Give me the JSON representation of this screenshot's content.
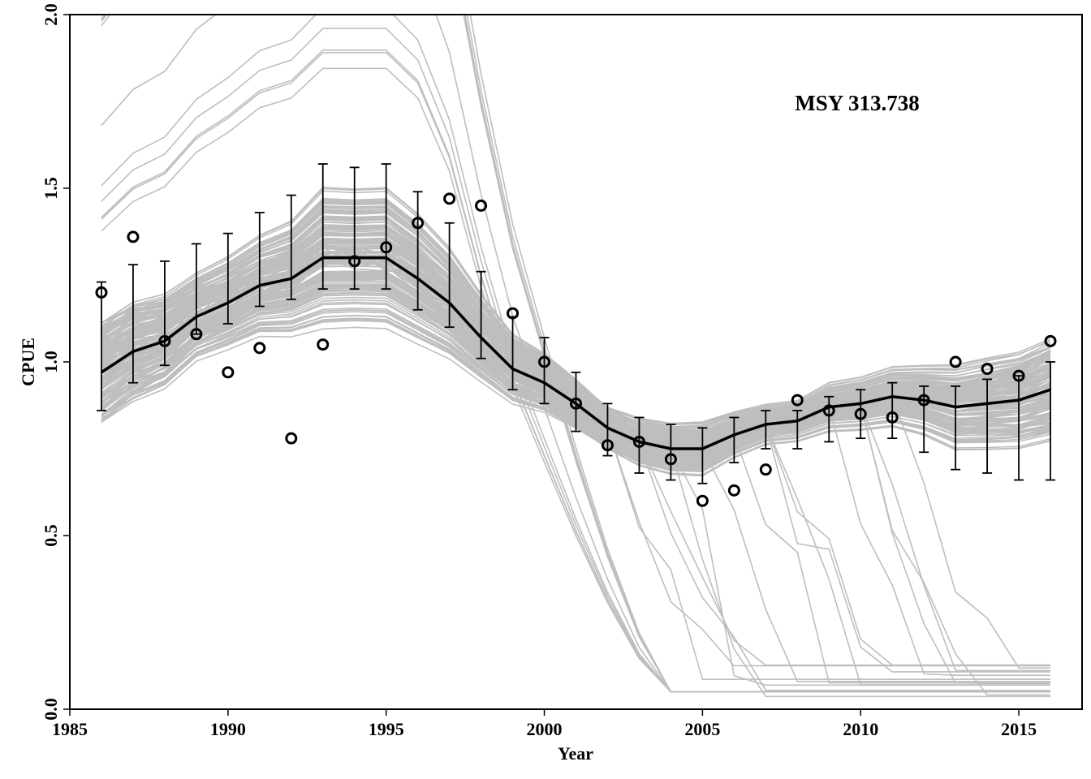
{
  "chart_data": {
    "type": "line",
    "title": "",
    "xlabel": "Year",
    "ylabel": "CPUE",
    "xlim": [
      1985,
      2017
    ],
    "ylim": [
      0,
      2
    ],
    "x_ticks": [
      1985,
      1990,
      1995,
      2000,
      2005,
      2010,
      2015
    ],
    "x_tick_labels": [
      "1985",
      "1990",
      "1995",
      "2000",
      "2005",
      "2010",
      "2015"
    ],
    "y_ticks": [
      0,
      0.5,
      1,
      1.5,
      2
    ],
    "y_tick_labels": [
      "0.0",
      "0.5",
      "1.0",
      "1.5",
      "2.0"
    ],
    "grid": false,
    "annotation": "MSY 313.738",
    "colors": {
      "trajectories": "#bebebe",
      "median": "#000000",
      "observed": "#000000"
    },
    "x": [
      1986,
      1987,
      1988,
      1989,
      1990,
      1991,
      1992,
      1993,
      1994,
      1995,
      1996,
      1997,
      1998,
      1999,
      2000,
      2001,
      2002,
      2003,
      2004,
      2005,
      2006,
      2007,
      2008,
      2009,
      2010,
      2011,
      2012,
      2013,
      2014,
      2015,
      2016
    ],
    "series": [
      {
        "name": "",
        "kind": "median_line",
        "values": [
          0.97,
          1.03,
          1.06,
          1.13,
          1.17,
          1.22,
          1.24,
          1.3,
          1.3,
          1.3,
          1.24,
          1.17,
          1.07,
          0.98,
          0.94,
          0.88,
          0.81,
          0.77,
          0.75,
          0.75,
          0.79,
          0.82,
          0.83,
          0.87,
          0.88,
          0.9,
          0.89,
          0.87,
          0.88,
          0.89,
          0.92
        ]
      },
      {
        "name": "",
        "kind": "interval",
        "lower": [
          0.86,
          0.94,
          0.99,
          1.08,
          1.11,
          1.16,
          1.18,
          1.21,
          1.21,
          1.21,
          1.15,
          1.1,
          1.01,
          0.92,
          0.88,
          0.8,
          0.73,
          0.68,
          0.66,
          0.65,
          0.71,
          0.75,
          0.75,
          0.77,
          0.78,
          0.78,
          0.74,
          0.69,
          0.68,
          0.66,
          0.66
        ],
        "upper": [
          1.23,
          1.28,
          1.29,
          1.34,
          1.37,
          1.43,
          1.48,
          1.57,
          1.56,
          1.57,
          1.49,
          1.4,
          1.26,
          1.13,
          1.07,
          0.97,
          0.88,
          0.84,
          0.82,
          0.81,
          0.84,
          0.86,
          0.86,
          0.9,
          0.92,
          0.94,
          0.93,
          0.93,
          0.95,
          0.96,
          1.0
        ]
      },
      {
        "name": "",
        "kind": "observed_points",
        "values": [
          1.2,
          1.36,
          1.06,
          1.08,
          0.97,
          1.04,
          0.78,
          1.05,
          1.29,
          1.33,
          1.4,
          1.47,
          1.45,
          1.14,
          1.0,
          0.88,
          0.76,
          0.77,
          0.72,
          0.6,
          0.63,
          0.69,
          0.89,
          0.86,
          0.85,
          0.84,
          0.89,
          1.0,
          0.98,
          0.96,
          1.06
        ]
      }
    ]
  }
}
